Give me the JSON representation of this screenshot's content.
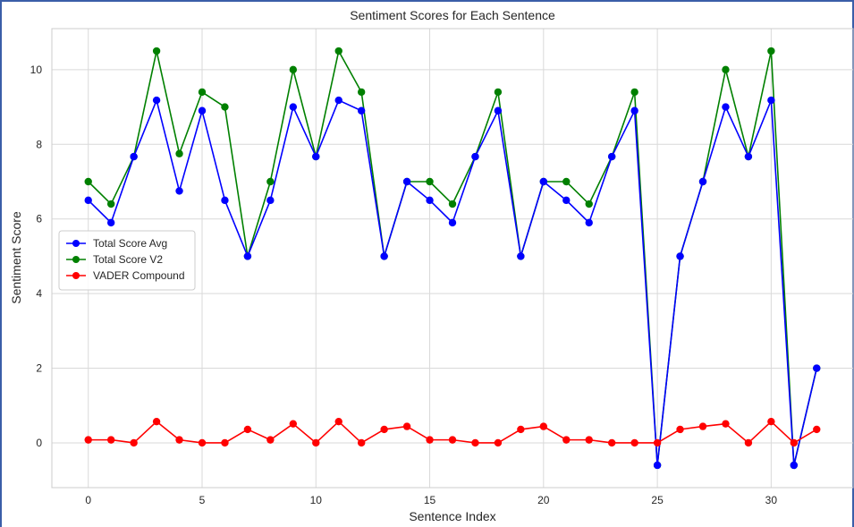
{
  "chart_data": {
    "type": "line",
    "title": "Sentiment Scores for Each Sentence",
    "xlabel": "Sentence Index",
    "ylabel": "Sentiment Score",
    "xlim": [
      -1.6,
      33.6
    ],
    "ylim": [
      -1.2,
      11.1
    ],
    "xticks": [
      0,
      5,
      10,
      15,
      20,
      25,
      30
    ],
    "yticks": [
      0,
      2,
      4,
      6,
      8,
      10
    ],
    "grid": true,
    "legend_position": "center-left",
    "x": [
      0,
      1,
      2,
      3,
      4,
      5,
      6,
      7,
      8,
      9,
      10,
      11,
      12,
      13,
      14,
      15,
      16,
      17,
      18,
      19,
      20,
      21,
      22,
      23,
      24,
      25,
      26,
      27,
      28,
      29,
      30,
      31,
      32
    ],
    "series": [
      {
        "name": "Total Score V2",
        "color": "#008000",
        "values": [
          7.0,
          6.4,
          7.67,
          10.5,
          7.75,
          9.4,
          9.0,
          5.0,
          7.0,
          10.0,
          7.67,
          10.5,
          9.4,
          5.0,
          7.0,
          7.0,
          6.4,
          7.67,
          9.4,
          5.0,
          7.0,
          7.0,
          6.4,
          7.67,
          9.4,
          -0.6,
          5.0,
          7.0,
          10.0,
          7.67,
          10.5,
          -0.6,
          2.0
        ]
      },
      {
        "name": "Total Score Avg",
        "color": "#0000ff",
        "values": [
          6.5,
          5.9,
          7.67,
          9.18,
          6.75,
          8.9,
          6.5,
          5.0,
          6.5,
          9.0,
          7.67,
          9.18,
          8.9,
          5.0,
          7.0,
          6.5,
          5.9,
          7.67,
          8.9,
          5.0,
          7.0,
          6.5,
          5.9,
          7.67,
          8.9,
          -0.6,
          5.0,
          7.0,
          9.0,
          7.67,
          9.18,
          -0.6,
          2.0
        ]
      },
      {
        "name": "VADER Compound",
        "color": "#ff0000",
        "values": [
          0.08,
          0.08,
          0.0,
          0.57,
          0.08,
          0.0,
          0.0,
          0.36,
          0.08,
          0.51,
          0.0,
          0.57,
          0.0,
          0.36,
          0.44,
          0.08,
          0.08,
          0.0,
          0.0,
          0.36,
          0.44,
          0.08,
          0.08,
          0.0,
          0.0,
          0.0,
          0.36,
          0.44,
          0.51,
          0.0,
          0.57,
          0.0,
          0.36
        ]
      }
    ],
    "legend": [
      "Total Score Avg",
      "Total Score V2",
      "VADER Compound"
    ]
  }
}
